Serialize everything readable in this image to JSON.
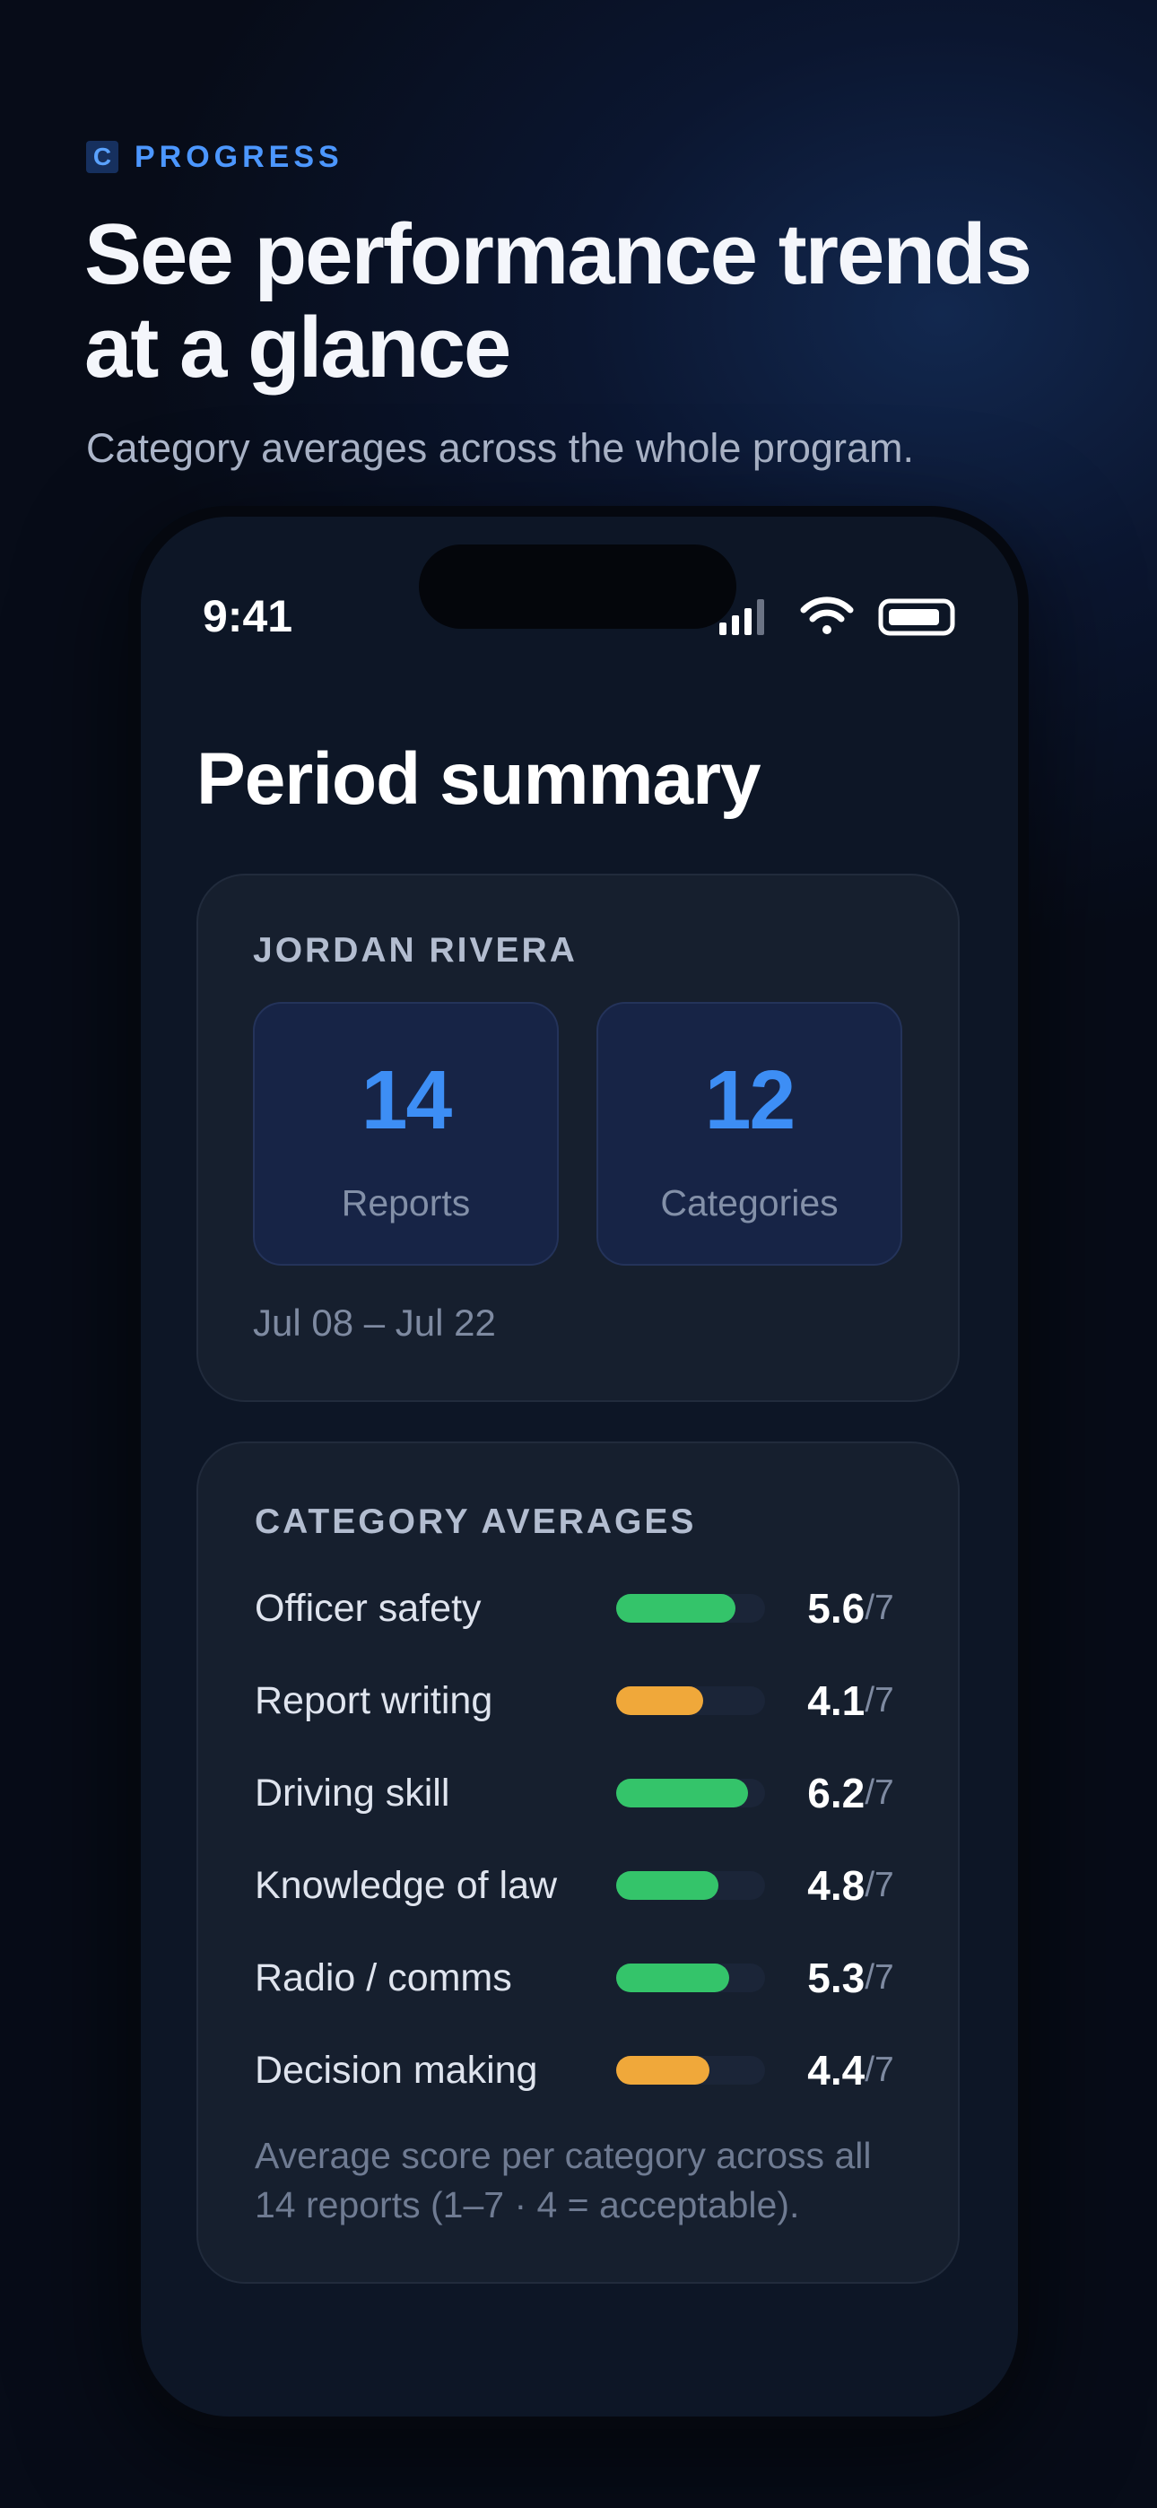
{
  "header": {
    "logo": "C",
    "eyebrow": "PROGRESS",
    "title": "See performance trends at a glance",
    "subtitle": "Category averages across the whole program."
  },
  "status_bar": {
    "time": "9:41"
  },
  "screen": {
    "title": "Period summary"
  },
  "summary": {
    "name": "JORDAN RIVERA",
    "stats": [
      {
        "value": 14,
        "label": "Reports"
      },
      {
        "value": 12,
        "label": "Categories"
      }
    ],
    "date_range": "Jul 08 – Jul 22"
  },
  "averages": {
    "title": "CATEGORY AVERAGES",
    "scale_max": {
      "value": 7,
      "label": "/7"
    },
    "items": [
      {
        "label": "Officer safety",
        "value": 5.6,
        "color": "#34c46a"
      },
      {
        "label": "Report writing",
        "value": 4.1,
        "color": "#f0a83a"
      },
      {
        "label": "Driving skill",
        "value": 6.2,
        "color": "#34c46a"
      },
      {
        "label": "Knowledge of law",
        "value": 4.8,
        "color": "#34c46a"
      },
      {
        "label": "Radio / comms",
        "value": 5.3,
        "color": "#34c46a"
      },
      {
        "label": "Decision making",
        "value": 4.4,
        "color": "#f0a83a"
      }
    ],
    "footnote": "Average score per category across all 14 reports (1–7 · 4 = acceptable)."
  }
}
